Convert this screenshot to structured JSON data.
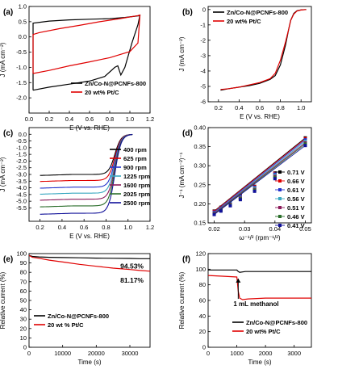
{
  "chart_data": [
    {
      "panel_label": "(a)",
      "type": "line",
      "xlabel": "E (V vs. RHE)",
      "ylabel": "J (mA cm⁻²)",
      "xlim": [
        0.0,
        1.2
      ],
      "ylim": [
        -2.5,
        1.0
      ],
      "xticks": [
        "0.0",
        "0.2",
        "0.4",
        "0.6",
        "0.8",
        "1.0",
        "1.2"
      ],
      "yticks": [
        "-2.0",
        "-1.5",
        "-1.0",
        "-0.5",
        "0.0",
        "0.5",
        "1.0"
      ],
      "legend_position": "bottom-right",
      "series": [
        {
          "name": "Zn/Co-N@PCNFs-800",
          "color": "#000000",
          "x": [
            0.04,
            0.2,
            0.4,
            0.6,
            0.75,
            0.85,
            0.88,
            0.91,
            0.95,
            1.02,
            1.08,
            1.1,
            1.1,
            1.05,
            0.95,
            0.8,
            0.6,
            0.4,
            0.2,
            0.04,
            0.04
          ],
          "y": [
            -1.75,
            -1.65,
            -1.55,
            -1.45,
            -1.3,
            -1.0,
            -0.95,
            -1.25,
            -1.0,
            -0.2,
            0.4,
            0.72,
            0.7,
            0.68,
            0.64,
            0.6,
            0.58,
            0.56,
            0.52,
            0.45,
            -1.75
          ]
        },
        {
          "name": "20 wt% Pt/C",
          "color": "#e00000",
          "x": [
            0.04,
            0.2,
            0.4,
            0.6,
            0.8,
            1.0,
            1.08,
            1.1,
            1.08,
            0.9,
            0.7,
            0.5,
            0.3,
            0.1,
            0.04,
            0.04
          ],
          "y": [
            -1.2,
            -1.1,
            -0.95,
            -0.82,
            -0.68,
            -0.48,
            -0.2,
            0.72,
            0.7,
            0.6,
            0.5,
            0.38,
            0.27,
            0.14,
            0.08,
            -1.2
          ]
        }
      ]
    },
    {
      "panel_label": "(b)",
      "type": "line",
      "xlabel": "E (V vs. RHE)",
      "ylabel": "J (mA cm⁻²)",
      "xlim": [
        0.1,
        1.1
      ],
      "ylim": [
        -6,
        0.2
      ],
      "xticks": [
        "0.2",
        "0.4",
        "0.6",
        "0.8",
        "1.0"
      ],
      "yticks": [
        "-6",
        "-5",
        "-4",
        "-3",
        "-2",
        "-1",
        "0"
      ],
      "legend_position": "top-left",
      "series": [
        {
          "name": "Zn/Co-N@PCNFs-800",
          "color": "#000000",
          "x": [
            0.22,
            0.3,
            0.4,
            0.5,
            0.6,
            0.7,
            0.75,
            0.8,
            0.85,
            0.88,
            0.9,
            0.93,
            0.96,
            1.0,
            1.05
          ],
          "y": [
            -5.25,
            -5.15,
            -5.05,
            -4.95,
            -4.8,
            -4.55,
            -4.3,
            -3.6,
            -2.3,
            -1.3,
            -0.7,
            -0.25,
            -0.08,
            -0.02,
            0.0
          ]
        },
        {
          "name": "20 wt% Pt/C",
          "color": "#e00000",
          "x": [
            0.22,
            0.3,
            0.4,
            0.5,
            0.6,
            0.7,
            0.75,
            0.8,
            0.85,
            0.88,
            0.9,
            0.93,
            0.96,
            1.0,
            1.05
          ],
          "y": [
            -5.2,
            -5.15,
            -5.05,
            -4.9,
            -4.75,
            -4.5,
            -4.15,
            -3.3,
            -2.1,
            -1.3,
            -0.7,
            -0.3,
            -0.1,
            -0.03,
            0.0
          ]
        }
      ]
    },
    {
      "panel_label": "(c)",
      "type": "line",
      "xlabel": "E (V vs. RHE)",
      "ylabel": "J (mA cm⁻²)",
      "xlim": [
        0.1,
        1.2
      ],
      "ylim": [
        -6.5,
        0.5
      ],
      "xticks": [
        "0.2",
        "0.4",
        "0.6",
        "0.8",
        "1.0",
        "1.2"
      ],
      "yticks": [
        "-5.5",
        "-5.0",
        "-4.5",
        "-4.0",
        "-3.5",
        "-3.0",
        "-2.5",
        "-2.0",
        "-1.5",
        "-1.0",
        "-0.5",
        "0.0"
      ],
      "legend_position": "right",
      "series": [
        {
          "name": "400 rpm",
          "color": "#000000",
          "plateau": -3.0
        },
        {
          "name": "625 rpm",
          "color": "#e00000",
          "plateau": -3.45
        },
        {
          "name": "900 rpm",
          "color": "#2233cc",
          "plateau": -3.95
        },
        {
          "name": "1225 rpm",
          "color": "#3aa8c0",
          "plateau": -4.4
        },
        {
          "name": "1600 rpm",
          "color": "#8b1a5a",
          "plateau": -4.85
        },
        {
          "name": "2025 rpm",
          "color": "#2b6e2b",
          "plateau": -5.35
        },
        {
          "name": "2500 rpm",
          "color": "#111199",
          "plateau": -5.9
        }
      ]
    },
    {
      "panel_label": "(d)",
      "type": "scatter",
      "xlabel": "ω⁻¹/² (rpm⁻¹/²)",
      "ylabel": "J⁻¹ (mA cm⁻²)⁻¹",
      "xlim": [
        0.018,
        0.052
      ],
      "ylim": [
        0.15,
        0.4
      ],
      "xticks": [
        "0.02",
        "0.03",
        "0.04",
        "0.05"
      ],
      "yticks": [
        "0.15",
        "0.20",
        "0.25",
        "0.30",
        "0.35",
        "0.40"
      ],
      "legend_position": "right",
      "x": [
        0.02,
        0.0222,
        0.0253,
        0.0286,
        0.0333,
        0.04,
        0.05
      ],
      "series": [
        {
          "name": "0.71 V",
          "color": "#000000",
          "values": [
            0.181,
            0.191,
            0.206,
            0.222,
            0.246,
            0.281,
            0.373
          ]
        },
        {
          "name": "0.66 V",
          "color": "#e00000",
          "values": [
            0.18,
            0.19,
            0.205,
            0.221,
            0.245,
            0.28,
            0.371
          ]
        },
        {
          "name": "0.61 V",
          "color": "#2233cc",
          "values": [
            0.178,
            0.188,
            0.203,
            0.219,
            0.243,
            0.278,
            0.368
          ]
        },
        {
          "name": "0.56 V",
          "color": "#3aa8c0",
          "values": [
            0.176,
            0.186,
            0.201,
            0.217,
            0.241,
            0.275,
            0.364
          ]
        },
        {
          "name": "0.51 V",
          "color": "#8b1a5a",
          "values": [
            0.175,
            0.184,
            0.199,
            0.215,
            0.238,
            0.272,
            0.36
          ]
        },
        {
          "name": "0.46 V",
          "color": "#2b6e2b",
          "values": [
            0.173,
            0.182,
            0.197,
            0.213,
            0.236,
            0.269,
            0.357
          ]
        },
        {
          "name": "0.41 V",
          "color": "#111199",
          "values": [
            0.172,
            0.181,
            0.195,
            0.211,
            0.233,
            0.266,
            0.353
          ]
        }
      ]
    },
    {
      "panel_label": "(e)",
      "type": "line",
      "xlabel": "Time (s)",
      "ylabel": "Relative current (%)",
      "xlim": [
        0,
        36000
      ],
      "ylim": [
        0,
        100
      ],
      "xticks": [
        "0",
        "10000",
        "20000",
        "30000"
      ],
      "yticks": [
        "0",
        "10",
        "20",
        "30",
        "40",
        "50",
        "60",
        "70",
        "80",
        "90",
        "100"
      ],
      "legend_position": "bottom-left",
      "annotations": [
        "94.53%",
        "81.17%"
      ],
      "series": [
        {
          "name": "Zn/Co-N@PCNFs-800",
          "color": "#000000",
          "x": [
            0,
            1000,
            3000,
            6000,
            10000,
            15000,
            20000,
            25000,
            30000,
            33000,
            36000
          ],
          "y": [
            98,
            97,
            96.5,
            96,
            95.8,
            95.5,
            95.2,
            95,
            94.8,
            94.6,
            94.53
          ]
        },
        {
          "name": "20 wt % Pt/C",
          "color": "#e00000",
          "x": [
            0,
            1000,
            3000,
            6000,
            10000,
            15000,
            20000,
            25000,
            30000,
            33000,
            36000
          ],
          "y": [
            98,
            96,
            95,
            93,
            91,
            88.5,
            86.5,
            84.5,
            83,
            82,
            81.17
          ]
        }
      ]
    },
    {
      "panel_label": "(f)",
      "type": "line",
      "xlabel": "Time (s)",
      "ylabel": "Relative current (%)",
      "xlim": [
        0,
        3600
      ],
      "ylim": [
        0,
        120
      ],
      "xticks": [
        "0",
        "1000",
        "2000",
        "3000"
      ],
      "yticks": [
        "0",
        "20",
        "40",
        "60",
        "80",
        "100",
        "120"
      ],
      "legend_position": "bottom-right",
      "annotations": [
        "1 mL methanol"
      ],
      "series": [
        {
          "name": "Zn/Co-N@PCNFs-800",
          "color": "#000000",
          "x": [
            0,
            500,
            1000,
            1050,
            1100,
            1300,
            2000,
            2800,
            3600
          ],
          "y": [
            99,
            99,
            99,
            97,
            96,
            97,
            97,
            97,
            97
          ]
        },
        {
          "name": "20 wt% Pt/C",
          "color": "#e00000",
          "x": [
            0,
            500,
            1000,
            1050,
            1100,
            1200,
            1400,
            2000,
            2800,
            3600
          ],
          "y": [
            92,
            91,
            90,
            72,
            63,
            61,
            62,
            63,
            63,
            63
          ]
        }
      ]
    }
  ]
}
